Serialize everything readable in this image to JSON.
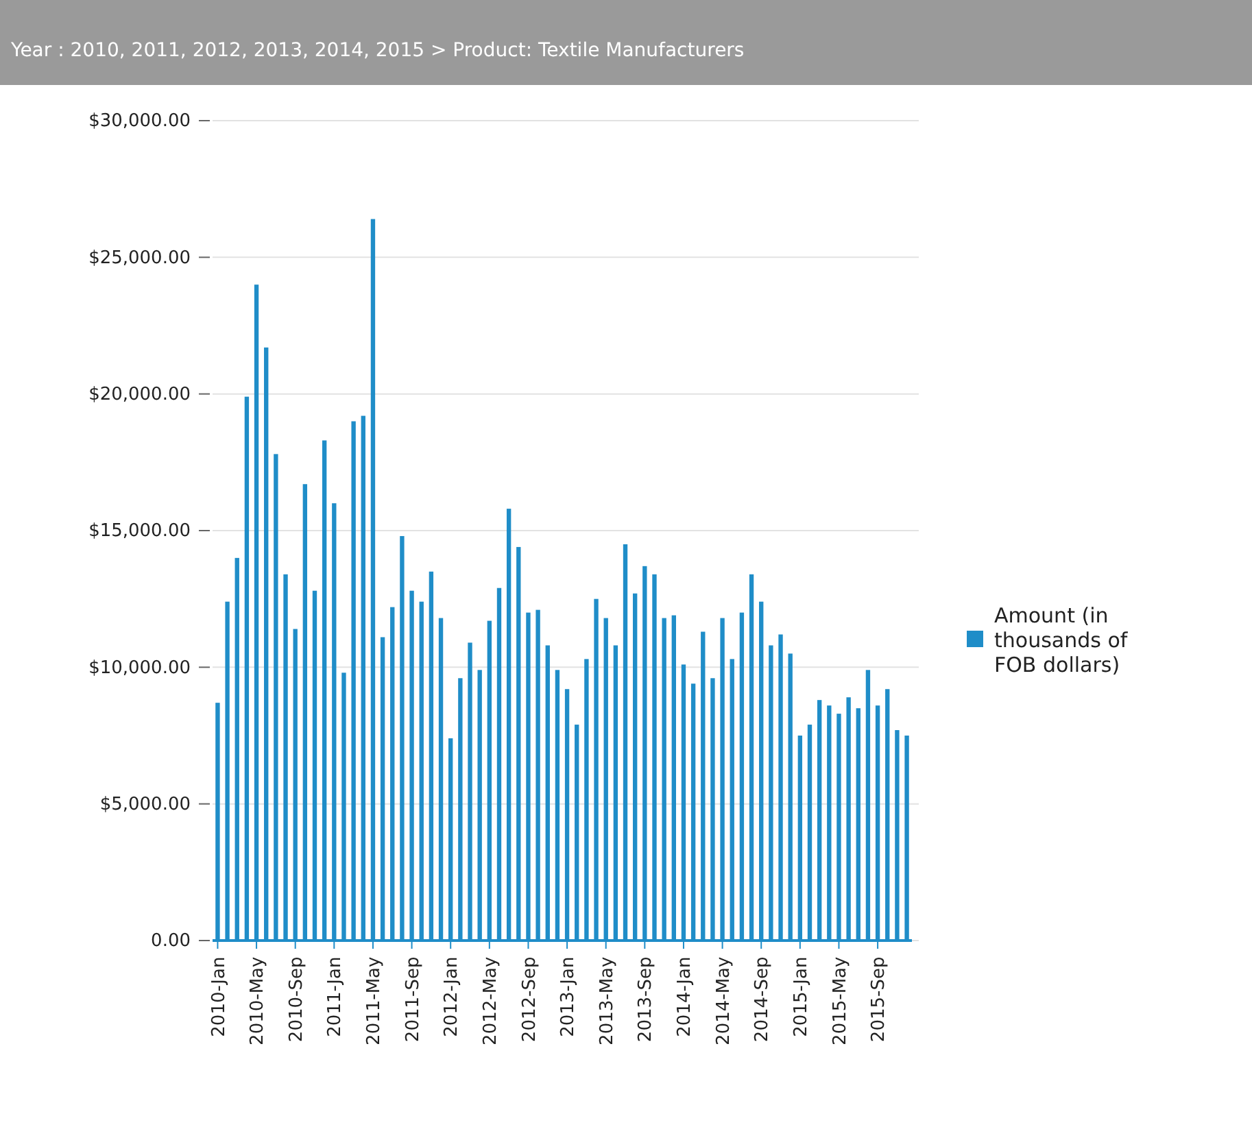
{
  "chart_data": {
    "type": "bar",
    "title": "Year : 2010, 2011, 2012, 2013, 2014, 2015 > Product: Textile Manufacturers",
    "categories": [
      "2010-Jan",
      null,
      null,
      null,
      "2010-May",
      null,
      null,
      null,
      "2010-Sep",
      null,
      null,
      null,
      "2011-Jan",
      null,
      null,
      null,
      "2011-May",
      null,
      null,
      null,
      "2011-Sep",
      null,
      null,
      null,
      "2012-Jan",
      null,
      null,
      null,
      "2012-May",
      null,
      null,
      null,
      "2012-Sep",
      null,
      null,
      null,
      "2013-Jan",
      null,
      null,
      null,
      "2013-May",
      null,
      null,
      null,
      "2013-Sep",
      null,
      null,
      null,
      "2014-Jan",
      null,
      null,
      null,
      "2014-May",
      null,
      null,
      null,
      "2014-Sep",
      null,
      null,
      null,
      "2015-Jan",
      null,
      null,
      null,
      "2015-May",
      null,
      null,
      null,
      "2015-Sep",
      null,
      null,
      null
    ],
    "series": [
      {
        "name": "Amount (in thousands of FOB dollars)",
        "color": "#1f8dc8",
        "values": [
          8700,
          12400,
          14000,
          19900,
          24000,
          21700,
          17800,
          13400,
          11400,
          16700,
          12800,
          18300,
          16000,
          9800,
          19000,
          19200,
          26400,
          11100,
          12200,
          14800,
          12800,
          12400,
          13500,
          11800,
          7400,
          9600,
          10900,
          9900,
          11700,
          12900,
          15800,
          14400,
          12000,
          12100,
          10800,
          9900,
          9200,
          7900,
          10300,
          12500,
          11800,
          10800,
          14500,
          12700,
          13700,
          13400,
          11800,
          11900,
          10100,
          9400,
          11300,
          9600,
          11800,
          10300,
          12000,
          13400,
          12400,
          10800,
          11200,
          10500,
          7500,
          7900,
          8800,
          8600,
          8300,
          8900,
          8500,
          9900,
          8600,
          9200,
          7700,
          7500
        ]
      }
    ],
    "ylim": [
      0,
      30000
    ],
    "yticks": [
      {
        "value": 0,
        "label": "0.00"
      },
      {
        "value": 5000,
        "label": "$5,000.00"
      },
      {
        "value": 10000,
        "label": "$10,000.00"
      },
      {
        "value": 15000,
        "label": "$15,000.00"
      },
      {
        "value": 20000,
        "label": "$20,000.00"
      },
      {
        "value": 25000,
        "label": "$25,000.00"
      },
      {
        "value": 30000,
        "label": "$30,000.00"
      }
    ],
    "grid": "y",
    "legend": "right"
  }
}
